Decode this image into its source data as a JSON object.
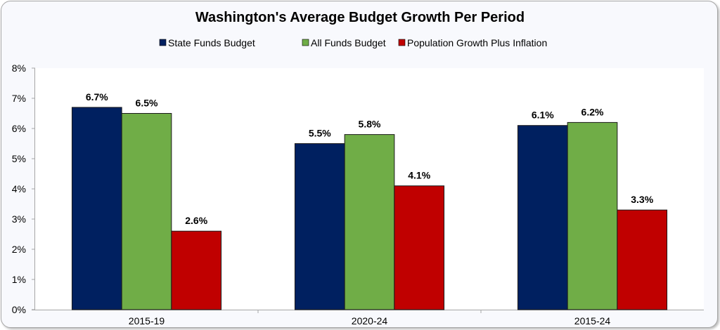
{
  "chart_data": {
    "type": "bar",
    "title": "Washington's Average Budget Growth Per Period",
    "categories": [
      "2015-19",
      "2020-24",
      "2015-24"
    ],
    "series": [
      {
        "name": "State Funds Budget",
        "color": "#002060",
        "values": [
          6.7,
          5.5,
          6.1
        ],
        "labels": [
          "6.7%",
          "5.5%",
          "6.1%"
        ]
      },
      {
        "name": "All Funds Budget",
        "color": "#70ad47",
        "values": [
          6.5,
          5.8,
          6.2
        ],
        "labels": [
          "6.5%",
          "5.8%",
          "6.2%"
        ]
      },
      {
        "name": "Population Growth Plus Inflation",
        "color": "#c00000",
        "values": [
          2.6,
          4.1,
          3.3
        ],
        "labels": [
          "2.6%",
          "4.1%",
          "3.3%"
        ]
      }
    ],
    "ylim": [
      0,
      8
    ],
    "yticks": [
      "0%",
      "1%",
      "2%",
      "3%",
      "4%",
      "5%",
      "6%",
      "7%",
      "8%"
    ],
    "xlabel": "",
    "ylabel": "",
    "legend": "top",
    "grid": false
  }
}
